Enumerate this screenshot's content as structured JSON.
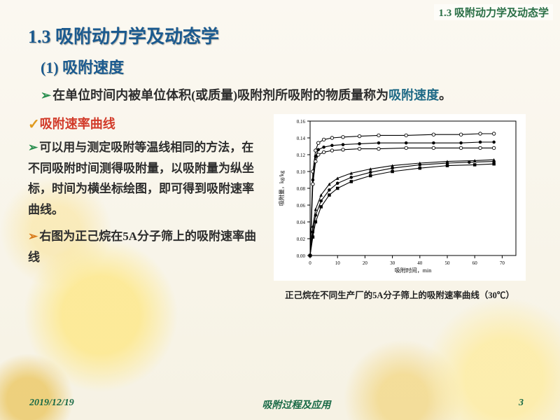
{
  "corner_label": "1.3 吸附动力学及动态学",
  "title": "1.3 吸附动力学及动态学",
  "subtitle": "(1) 吸附速度",
  "intro_prefix": "在单位时间内被单位体积(或质量)吸附剂所吸附的物质量称为",
  "intro_highlight": "吸附速度",
  "intro_suffix": "。",
  "curve_heading": "吸附速率曲线",
  "curve_para": "可以用与测定吸附等温线相同的方法，在不同吸附时间测得吸附量，以吸附量为纵坐标，时间为横坐标绘图，即可得到吸附速率曲线。",
  "fig_label": "右图为正己烷在5A分子筛上的吸附速率曲线",
  "chart_caption": "正己烷在不同生产厂的5A分子筛上的吸附速率曲线（30℃）",
  "footer": {
    "date": "2019/12/19",
    "center": "吸附过程及应用",
    "page": "3"
  },
  "chart": {
    "type": "line-scatter",
    "x_label": "吸附时间，min",
    "y_label": "吸附量，kg/kg",
    "xlim": [
      0,
      75
    ],
    "ylim": [
      0,
      0.16
    ],
    "xticks": [
      0,
      10,
      20,
      30,
      40,
      50,
      60,
      70
    ],
    "yticks": [
      0,
      0.02,
      0.04,
      0.06,
      0.08,
      0.1,
      0.12,
      0.14,
      0.16
    ],
    "axis_color": "#000000",
    "grid_color": "none",
    "label_fontsize": 8,
    "tick_fontsize": 7,
    "line_color": "#000000",
    "line_width": 1.1,
    "marker_size": 4.5,
    "series": [
      {
        "marker": "circle-open",
        "fill": "#ffffff",
        "x": [
          0,
          1,
          2,
          3,
          5,
          8,
          12,
          18,
          25,
          35,
          45,
          55,
          62,
          67
        ],
        "y": [
          0,
          0.1,
          0.125,
          0.134,
          0.138,
          0.14,
          0.141,
          0.142,
          0.143,
          0.143,
          0.144,
          0.144,
          0.145,
          0.145
        ]
      },
      {
        "marker": "circle",
        "fill": "#000000",
        "x": [
          0,
          1,
          2,
          3,
          5,
          8,
          12,
          18,
          25,
          35,
          45,
          55,
          62,
          67
        ],
        "y": [
          0,
          0.09,
          0.118,
          0.126,
          0.129,
          0.131,
          0.132,
          0.133,
          0.134,
          0.134,
          0.134,
          0.134,
          0.135,
          0.135
        ]
      },
      {
        "marker": "circle-open",
        "fill": "#ffffff",
        "x": [
          0,
          1,
          2,
          3,
          5,
          8,
          12,
          18,
          25,
          35,
          45,
          55,
          62,
          67
        ],
        "y": [
          0,
          0.085,
          0.112,
          0.12,
          0.123,
          0.125,
          0.126,
          0.127,
          0.127,
          0.128,
          0.128,
          0.128,
          0.128,
          0.128
        ]
      },
      {
        "marker": "triangle",
        "fill": "#000000",
        "x": [
          0,
          1,
          2,
          4,
          7,
          10,
          15,
          22,
          30,
          40,
          50,
          60,
          67
        ],
        "y": [
          0,
          0.035,
          0.055,
          0.072,
          0.085,
          0.092,
          0.098,
          0.103,
          0.107,
          0.11,
          0.112,
          0.113,
          0.114
        ]
      },
      {
        "marker": "circle",
        "fill": "#000000",
        "x": [
          0,
          1,
          2,
          4,
          7,
          10,
          15,
          22,
          30,
          40,
          50,
          58,
          67
        ],
        "y": [
          0,
          0.028,
          0.048,
          0.065,
          0.078,
          0.086,
          0.093,
          0.099,
          0.104,
          0.108,
          0.11,
          0.111,
          0.112
        ]
      },
      {
        "marker": "square",
        "fill": "#000000",
        "x": [
          0,
          1,
          2,
          4,
          7,
          10,
          15,
          22,
          30,
          40,
          50,
          60,
          67
        ],
        "y": [
          0,
          0.022,
          0.04,
          0.058,
          0.072,
          0.08,
          0.088,
          0.095,
          0.1,
          0.104,
          0.107,
          0.108,
          0.109
        ]
      }
    ]
  }
}
